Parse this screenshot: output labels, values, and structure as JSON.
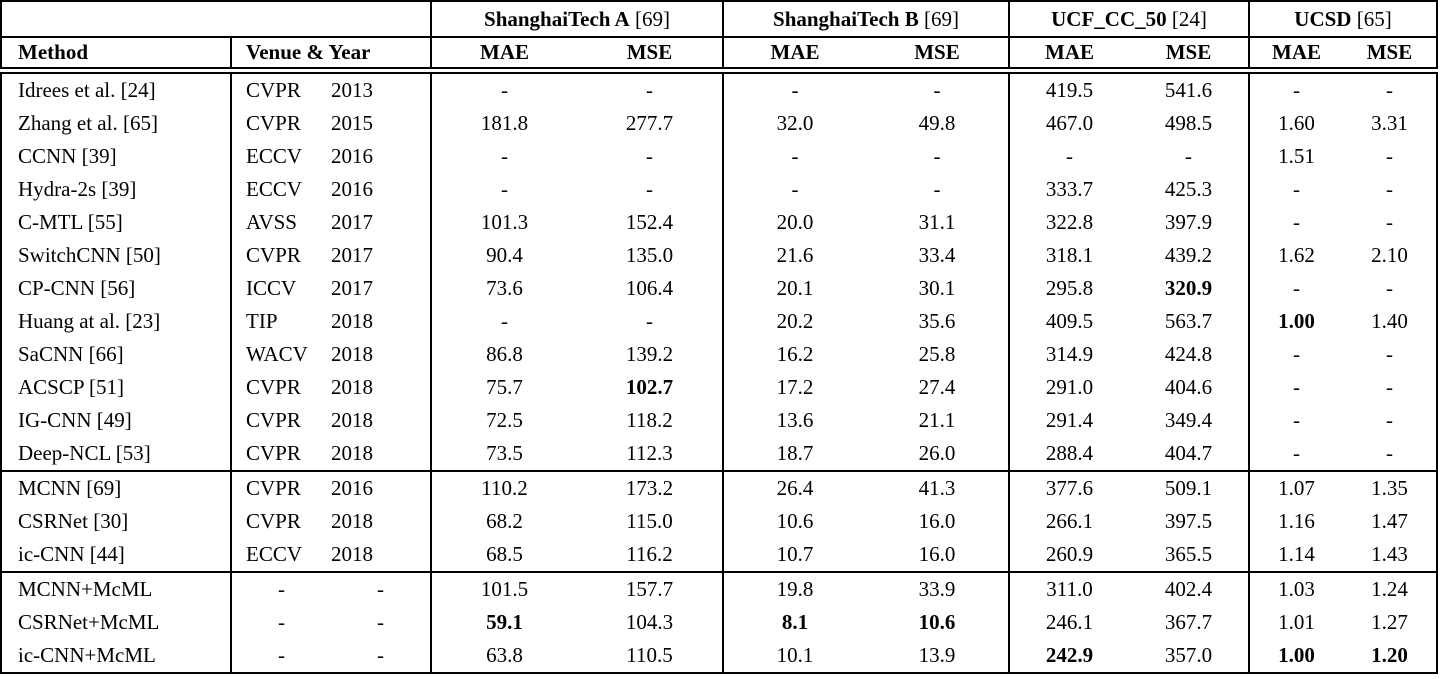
{
  "table": {
    "group_headers": [
      {
        "name": "ShanghaiTech A",
        "ref": "[69]"
      },
      {
        "name": "ShanghaiTech B",
        "ref": "[69]"
      },
      {
        "name": "UCF_CC_50",
        "ref": "[24]"
      },
      {
        "name": "UCSD",
        "ref": "[65]"
      }
    ],
    "column_headers": {
      "method": "Method",
      "venue_year": "Venue & Year",
      "mae": "MAE",
      "mse": "MSE"
    },
    "rows": [
      {
        "method": "Idrees et al. [24]",
        "venue": "CVPR",
        "year": "2013",
        "values": [
          "-",
          "-",
          "-",
          "-",
          "419.5",
          "541.6",
          "-",
          "-"
        ],
        "bold": [],
        "rule_above": false
      },
      {
        "method": "Zhang et al. [65]",
        "venue": "CVPR",
        "year": "2015",
        "values": [
          "181.8",
          "277.7",
          "32.0",
          "49.8",
          "467.0",
          "498.5",
          "1.60",
          "3.31"
        ],
        "bold": [],
        "rule_above": false
      },
      {
        "method": "CCNN [39]",
        "venue": "ECCV",
        "year": "2016",
        "values": [
          "-",
          "-",
          "-",
          "-",
          "-",
          "-",
          "1.51",
          "-"
        ],
        "bold": [],
        "rule_above": false
      },
      {
        "method": "Hydra-2s [39]",
        "venue": "ECCV",
        "year": "2016",
        "values": [
          "-",
          "-",
          "-",
          "-",
          "333.7",
          "425.3",
          "-",
          "-"
        ],
        "bold": [],
        "rule_above": false
      },
      {
        "method": "C-MTL [55]",
        "venue": "AVSS",
        "year": "2017",
        "values": [
          "101.3",
          "152.4",
          "20.0",
          "31.1",
          "322.8",
          "397.9",
          "-",
          "-"
        ],
        "bold": [],
        "rule_above": false
      },
      {
        "method": "SwitchCNN [50]",
        "venue": "CVPR",
        "year": "2017",
        "values": [
          "90.4",
          "135.0",
          "21.6",
          "33.4",
          "318.1",
          "439.2",
          "1.62",
          "2.10"
        ],
        "bold": [],
        "rule_above": false
      },
      {
        "method": "CP-CNN [56]",
        "venue": "ICCV",
        "year": "2017",
        "values": [
          "73.6",
          "106.4",
          "20.1",
          "30.1",
          "295.8",
          "320.9",
          "-",
          "-"
        ],
        "bold": [
          5
        ],
        "rule_above": false
      },
      {
        "method": "Huang at al. [23]",
        "venue": "TIP",
        "year": "2018",
        "values": [
          "-",
          "-",
          "20.2",
          "35.6",
          "409.5",
          "563.7",
          "1.00",
          "1.40"
        ],
        "bold": [
          6
        ],
        "rule_above": false
      },
      {
        "method": "SaCNN [66]",
        "venue": "WACV",
        "year": "2018",
        "values": [
          "86.8",
          "139.2",
          "16.2",
          "25.8",
          "314.9",
          "424.8",
          "-",
          "-"
        ],
        "bold": [],
        "rule_above": false
      },
      {
        "method": "ACSCP [51]",
        "venue": "CVPR",
        "year": "2018",
        "values": [
          "75.7",
          "102.7",
          "17.2",
          "27.4",
          "291.0",
          "404.6",
          "-",
          "-"
        ],
        "bold": [
          1
        ],
        "rule_above": false
      },
      {
        "method": "IG-CNN [49]",
        "venue": "CVPR",
        "year": "2018",
        "values": [
          "72.5",
          "118.2",
          "13.6",
          "21.1",
          "291.4",
          "349.4",
          "-",
          "-"
        ],
        "bold": [],
        "rule_above": false
      },
      {
        "method": "Deep-NCL [53]",
        "venue": "CVPR",
        "year": "2018",
        "values": [
          "73.5",
          "112.3",
          "18.7",
          "26.0",
          "288.4",
          "404.7",
          "-",
          "-"
        ],
        "bold": [],
        "rule_above": false
      },
      {
        "method": "MCNN [69]",
        "venue": "CVPR",
        "year": "2016",
        "values": [
          "110.2",
          "173.2",
          "26.4",
          "41.3",
          "377.6",
          "509.1",
          "1.07",
          "1.35"
        ],
        "bold": [],
        "rule_above": true
      },
      {
        "method": "CSRNet [30]",
        "venue": "CVPR",
        "year": "2018",
        "values": [
          "68.2",
          "115.0",
          "10.6",
          "16.0",
          "266.1",
          "397.5",
          "1.16",
          "1.47"
        ],
        "bold": [],
        "rule_above": false
      },
      {
        "method": "ic-CNN [44]",
        "venue": "ECCV",
        "year": "2018",
        "values": [
          "68.5",
          "116.2",
          "10.7",
          "16.0",
          "260.9",
          "365.5",
          "1.14",
          "1.43"
        ],
        "bold": [],
        "rule_above": false
      },
      {
        "method": "MCNN+McML",
        "venue": "-",
        "year": "-",
        "values": [
          "101.5",
          "157.7",
          "19.8",
          "33.9",
          "311.0",
          "402.4",
          "1.03",
          "1.24"
        ],
        "bold": [],
        "rule_above": true
      },
      {
        "method": "CSRNet+McML",
        "venue": "-",
        "year": "-",
        "values": [
          "59.1",
          "104.3",
          "8.1",
          "10.6",
          "246.1",
          "367.7",
          "1.01",
          "1.27"
        ],
        "bold": [
          0,
          2,
          3
        ],
        "rule_above": false
      },
      {
        "method": "ic-CNN+McML",
        "venue": "-",
        "year": "-",
        "values": [
          "63.8",
          "110.5",
          "10.1",
          "13.9",
          "242.9",
          "357.0",
          "1.00",
          "1.20"
        ],
        "bold": [
          4,
          6,
          7
        ],
        "rule_above": false
      }
    ]
  }
}
